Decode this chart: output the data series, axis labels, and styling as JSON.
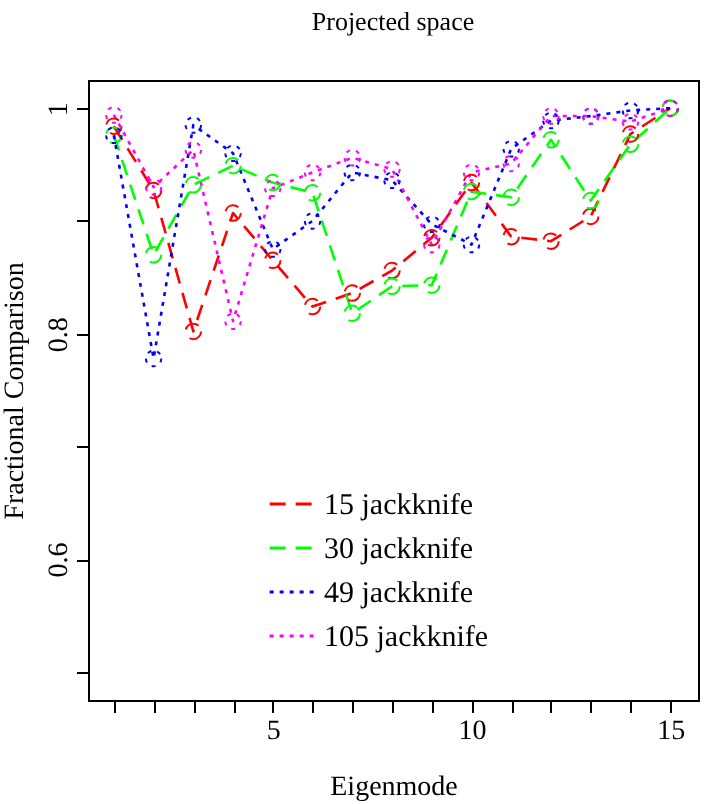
{
  "chart_data": {
    "type": "line",
    "title": "Projected space",
    "xlabel": "Eigenmode",
    "ylabel": "Fractional Comparison",
    "x": [
      1,
      2,
      3,
      4,
      5,
      6,
      7,
      8,
      9,
      10,
      11,
      12,
      13,
      14,
      15
    ],
    "xlim": [
      0.35,
      15.7
    ],
    "ylim": [
      0.475,
      1.025
    ],
    "xticks": [
      {
        "value": 1,
        "label": null
      },
      {
        "value": 2,
        "label": null
      },
      {
        "value": 3,
        "label": null
      },
      {
        "value": 4,
        "label": null
      },
      5,
      {
        "value": 6,
        "label": null
      },
      {
        "value": 7,
        "label": null
      },
      {
        "value": 8,
        "label": null
      },
      {
        "value": 9,
        "label": null
      },
      10,
      {
        "value": 11,
        "label": null
      },
      {
        "value": 12,
        "label": null
      },
      {
        "value": 13,
        "label": null
      },
      {
        "value": 14,
        "label": null
      },
      15
    ],
    "yticks": [
      {
        "value": 0.5,
        "label": null
      },
      0.6,
      {
        "value": 0.7,
        "label": null
      },
      0.8,
      {
        "value": 0.9,
        "label": null
      },
      1
    ],
    "marker": "circle",
    "grid": false,
    "legend": "bottom",
    "series": [
      {
        "name": "15 jackknife",
        "color": "#ff0000",
        "line_style": "dashed",
        "values": [
          0.984,
          0.927,
          0.802,
          0.907,
          0.865,
          0.824,
          0.836,
          0.856,
          0.885,
          0.934,
          0.886,
          0.882,
          0.904,
          0.977,
          1.0
        ]
      },
      {
        "name": "30 jackknife",
        "color": "#00ff00",
        "line_style": "dashed",
        "values": [
          0.976,
          0.87,
          0.932,
          0.949,
          0.934,
          0.925,
          0.818,
          0.842,
          0.843,
          0.926,
          0.921,
          0.972,
          0.918,
          0.968,
          1.0
        ]
      },
      {
        "name": "49 jackknife",
        "color": "#0000ff",
        "line_style": "dotted",
        "values": [
          0.976,
          0.778,
          0.985,
          0.96,
          0.875,
          0.9,
          0.943,
          0.936,
          0.897,
          0.879,
          0.964,
          0.989,
          0.993,
          0.998,
          1.0
        ]
      },
      {
        "name": "105 jackknife",
        "color": "#ff00ff",
        "line_style": "dotted",
        "values": [
          0.994,
          0.93,
          0.963,
          0.811,
          0.929,
          0.943,
          0.956,
          0.946,
          0.879,
          0.943,
          0.951,
          0.993,
          0.993,
          0.988,
          1.0
        ]
      }
    ]
  }
}
